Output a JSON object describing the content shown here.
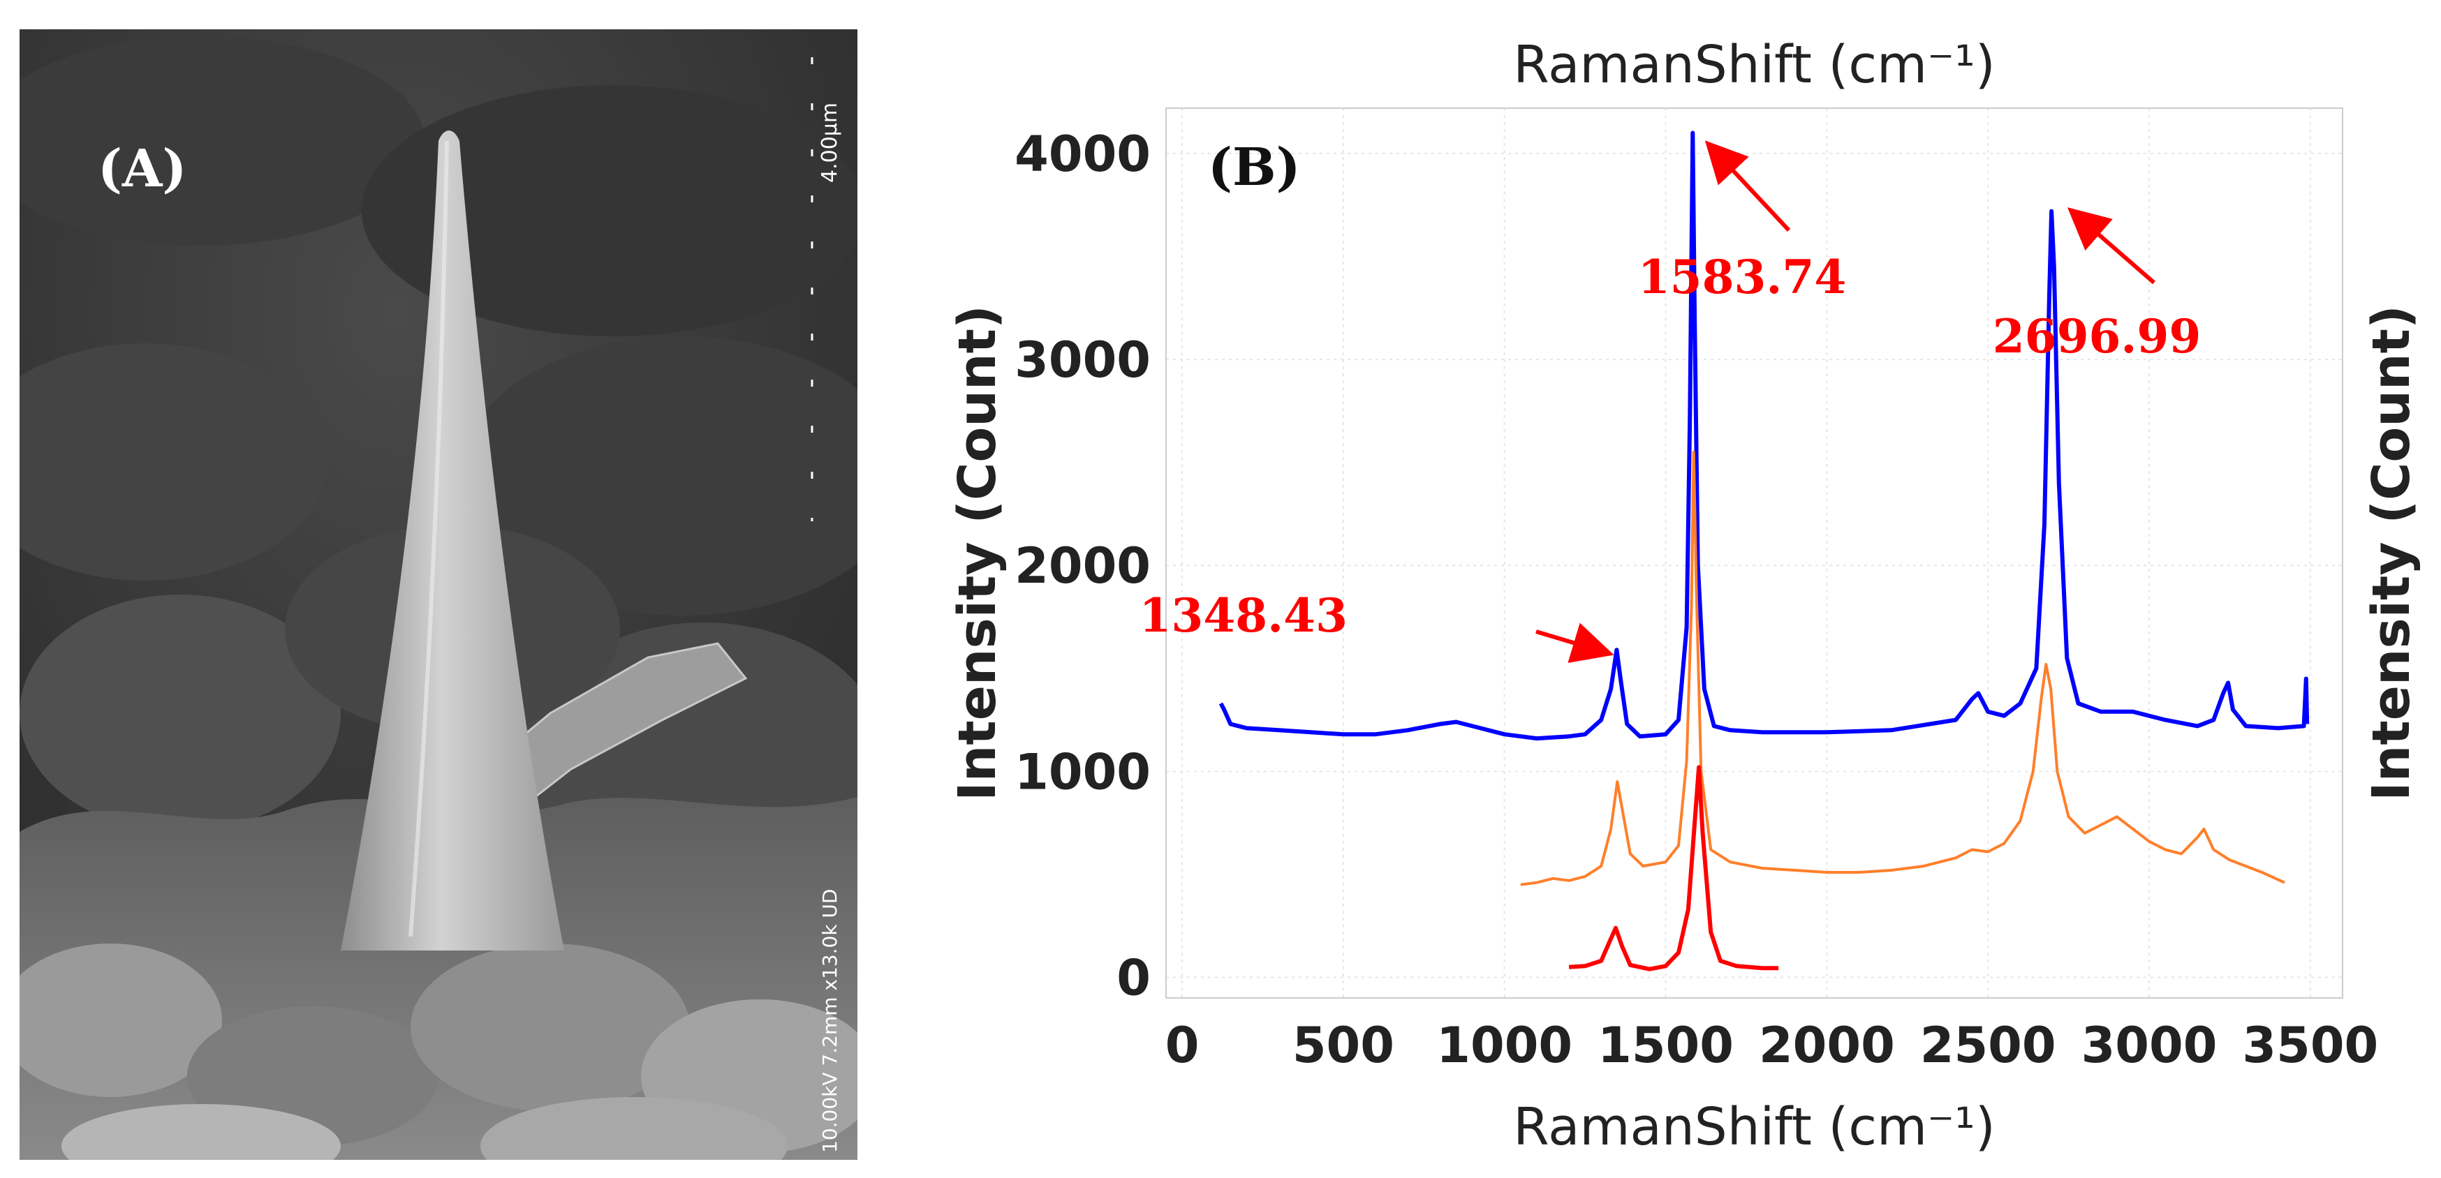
{
  "figure": {
    "panel_a": {
      "label": "(A)",
      "scale_bar": "4.00µm",
      "sem_info": "10.00kV 7.2mm x13.0k UD"
    },
    "panel_b": {
      "label": "(B)"
    }
  },
  "chart_data": {
    "type": "line",
    "title": "RamanShift (cm⁻¹)",
    "xlabel": "RamanShift (cm⁻¹)",
    "ylabel": "Intensity (Count)",
    "ylabel_right": "Intensity (Count)",
    "xlim": [
      -50,
      3600
    ],
    "ylim": [
      -100,
      4220
    ],
    "x_ticks": [
      0,
      500,
      1000,
      1500,
      2000,
      2500,
      3000,
      3500
    ],
    "y_ticks": [
      0,
      1000,
      2000,
      3000,
      4000
    ],
    "grid": true,
    "series": [
      {
        "name": "blue",
        "color": "#0000ff",
        "points": [
          [
            120,
            1330
          ],
          [
            130,
            1300
          ],
          [
            150,
            1230
          ],
          [
            200,
            1210
          ],
          [
            300,
            1200
          ],
          [
            400,
            1190
          ],
          [
            500,
            1180
          ],
          [
            600,
            1180
          ],
          [
            700,
            1200
          ],
          [
            800,
            1230
          ],
          [
            850,
            1240
          ],
          [
            900,
            1220
          ],
          [
            1000,
            1180
          ],
          [
            1100,
            1160
          ],
          [
            1200,
            1170
          ],
          [
            1250,
            1180
          ],
          [
            1300,
            1250
          ],
          [
            1330,
            1400
          ],
          [
            1348,
            1590
          ],
          [
            1360,
            1450
          ],
          [
            1380,
            1230
          ],
          [
            1420,
            1170
          ],
          [
            1500,
            1180
          ],
          [
            1540,
            1250
          ],
          [
            1565,
            1700
          ],
          [
            1575,
            2700
          ],
          [
            1584,
            4100
          ],
          [
            1590,
            3200
          ],
          [
            1600,
            2000
          ],
          [
            1620,
            1400
          ],
          [
            1650,
            1220
          ],
          [
            1700,
            1200
          ],
          [
            1800,
            1190
          ],
          [
            2000,
            1190
          ],
          [
            2200,
            1200
          ],
          [
            2400,
            1250
          ],
          [
            2450,
            1350
          ],
          [
            2470,
            1380
          ],
          [
            2500,
            1290
          ],
          [
            2550,
            1270
          ],
          [
            2600,
            1330
          ],
          [
            2650,
            1500
          ],
          [
            2675,
            2200
          ],
          [
            2690,
            3300
          ],
          [
            2697,
            3720
          ],
          [
            2705,
            3450
          ],
          [
            2720,
            2400
          ],
          [
            2745,
            1550
          ],
          [
            2780,
            1330
          ],
          [
            2850,
            1290
          ],
          [
            2950,
            1290
          ],
          [
            3050,
            1250
          ],
          [
            3150,
            1220
          ],
          [
            3200,
            1250
          ],
          [
            3230,
            1380
          ],
          [
            3245,
            1430
          ],
          [
            3260,
            1300
          ],
          [
            3300,
            1220
          ],
          [
            3400,
            1210
          ],
          [
            3480,
            1220
          ],
          [
            3487,
            1450
          ],
          [
            3490,
            1230
          ]
        ]
      },
      {
        "name": "orange",
        "color": "#ff7f2a",
        "points": [
          [
            1050,
            450
          ],
          [
            1100,
            460
          ],
          [
            1150,
            480
          ],
          [
            1200,
            470
          ],
          [
            1250,
            490
          ],
          [
            1300,
            540
          ],
          [
            1330,
            720
          ],
          [
            1350,
            950
          ],
          [
            1365,
            820
          ],
          [
            1390,
            600
          ],
          [
            1430,
            540
          ],
          [
            1500,
            560
          ],
          [
            1540,
            640
          ],
          [
            1565,
            1050
          ],
          [
            1580,
            1800
          ],
          [
            1587,
            2550
          ],
          [
            1595,
            1900
          ],
          [
            1610,
            1000
          ],
          [
            1640,
            620
          ],
          [
            1700,
            560
          ],
          [
            1800,
            530
          ],
          [
            1900,
            520
          ],
          [
            2000,
            510
          ],
          [
            2100,
            510
          ],
          [
            2200,
            520
          ],
          [
            2300,
            540
          ],
          [
            2400,
            580
          ],
          [
            2450,
            620
          ],
          [
            2500,
            610
          ],
          [
            2550,
            650
          ],
          [
            2600,
            760
          ],
          [
            2640,
            1000
          ],
          [
            2665,
            1350
          ],
          [
            2680,
            1520
          ],
          [
            2695,
            1400
          ],
          [
            2715,
            1000
          ],
          [
            2750,
            780
          ],
          [
            2800,
            700
          ],
          [
            2850,
            740
          ],
          [
            2900,
            780
          ],
          [
            2950,
            720
          ],
          [
            3000,
            660
          ],
          [
            3050,
            620
          ],
          [
            3100,
            600
          ],
          [
            3150,
            680
          ],
          [
            3170,
            720
          ],
          [
            3200,
            620
          ],
          [
            3250,
            570
          ],
          [
            3300,
            540
          ],
          [
            3350,
            510
          ],
          [
            3420,
            460
          ]
        ]
      },
      {
        "name": "red",
        "color": "#ff0000",
        "points": [
          [
            1200,
            50
          ],
          [
            1250,
            55
          ],
          [
            1300,
            80
          ],
          [
            1325,
            170
          ],
          [
            1345,
            240
          ],
          [
            1365,
            150
          ],
          [
            1390,
            60
          ],
          [
            1450,
            40
          ],
          [
            1500,
            55
          ],
          [
            1540,
            120
          ],
          [
            1570,
            330
          ],
          [
            1590,
            750
          ],
          [
            1603,
            1020
          ],
          [
            1615,
            700
          ],
          [
            1640,
            220
          ],
          [
            1670,
            80
          ],
          [
            1720,
            55
          ],
          [
            1800,
            45
          ],
          [
            1850,
            45
          ]
        ]
      }
    ],
    "annotations": [
      {
        "text": "1583.74",
        "color": "#ff0000"
      },
      {
        "text": "2696.99",
        "color": "#ff0000"
      },
      {
        "text": "1348.43",
        "color": "#ff0000"
      }
    ]
  }
}
